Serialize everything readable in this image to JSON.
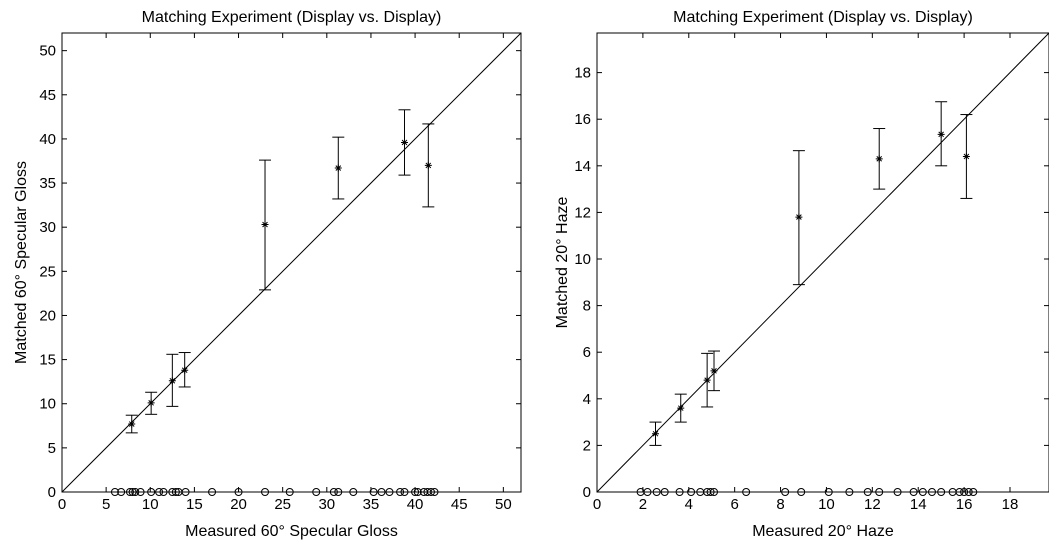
{
  "chart_data": [
    {
      "type": "scatter",
      "title": "Matching Experiment (Display vs. Display)",
      "xlabel": "Measured 60° Specular Gloss",
      "ylabel": "Matched 60° Specular Gloss",
      "xlim": [
        0,
        52
      ],
      "ylim": [
        0,
        52
      ],
      "xticks": [
        0,
        5,
        10,
        15,
        20,
        25,
        30,
        35,
        40,
        45,
        50
      ],
      "yticks": [
        0,
        5,
        10,
        15,
        20,
        25,
        30,
        35,
        40,
        45,
        50
      ],
      "identity_line": true,
      "series": [
        {
          "marker": "asterisk",
          "points": [
            {
              "x": 7.9,
              "y": 7.7,
              "ylow": 6.7,
              "yhigh": 8.7
            },
            {
              "x": 10.1,
              "y": 10.1,
              "ylow": 8.8,
              "yhigh": 11.3
            },
            {
              "x": 12.5,
              "y": 12.6,
              "ylow": 9.7,
              "yhigh": 15.6
            },
            {
              "x": 13.9,
              "y": 13.8,
              "ylow": 11.9,
              "yhigh": 15.8
            },
            {
              "x": 23.0,
              "y": 30.3,
              "ylow": 22.9,
              "yhigh": 37.6
            },
            {
              "x": 31.3,
              "y": 36.7,
              "ylow": 33.2,
              "yhigh": 40.2
            },
            {
              "x": 38.8,
              "y": 39.6,
              "ylow": 35.9,
              "yhigh": 43.3
            },
            {
              "x": 41.5,
              "y": 37.0,
              "ylow": 32.3,
              "yhigh": 41.7
            }
          ]
        },
        {
          "marker": "circle",
          "x": [
            6.0,
            6.7,
            7.7,
            8.0,
            8.3,
            8.9,
            10.1,
            11.0,
            11.5,
            12.5,
            12.9,
            13.2,
            14.0,
            17.0,
            20.0,
            23.0,
            25.8,
            28.8,
            30.8,
            31.3,
            33.0,
            35.3,
            36.2,
            37.1,
            38.3,
            38.8,
            40.0,
            40.3,
            41.0,
            41.4,
            41.8,
            42.2
          ],
          "y": 0
        }
      ]
    },
    {
      "type": "scatter",
      "title": "Matching Experiment (Display vs. Display)",
      "xlabel": "Measured 20° Haze",
      "ylabel": "Matched 20° Haze",
      "xlim": [
        0,
        19.7
      ],
      "ylim": [
        0,
        19.7
      ],
      "xticks": [
        0,
        2,
        4,
        6,
        8,
        10,
        12,
        14,
        16,
        18
      ],
      "yticks": [
        0,
        2,
        4,
        6,
        8,
        10,
        12,
        14,
        16,
        18
      ],
      "identity_line": true,
      "series": [
        {
          "marker": "asterisk",
          "points": [
            {
              "x": 2.55,
              "y": 2.5,
              "ylow": 2.0,
              "yhigh": 3.0
            },
            {
              "x": 3.65,
              "y": 3.6,
              "ylow": 3.0,
              "yhigh": 4.2
            },
            {
              "x": 4.8,
              "y": 4.8,
              "ylow": 3.65,
              "yhigh": 5.95
            },
            {
              "x": 5.1,
              "y": 5.2,
              "ylow": 4.35,
              "yhigh": 6.05
            },
            {
              "x": 8.8,
              "y": 11.8,
              "ylow": 8.9,
              "yhigh": 14.65
            },
            {
              "x": 12.3,
              "y": 14.3,
              "ylow": 13.0,
              "yhigh": 15.6
            },
            {
              "x": 15.0,
              "y": 15.35,
              "ylow": 14.0,
              "yhigh": 16.75
            },
            {
              "x": 16.1,
              "y": 14.4,
              "ylow": 12.6,
              "yhigh": 16.2
            }
          ]
        },
        {
          "marker": "circle",
          "x": [
            1.9,
            2.2,
            2.6,
            2.95,
            3.6,
            4.1,
            4.5,
            4.8,
            4.95,
            5.1,
            6.5,
            8.2,
            8.9,
            10.1,
            11.0,
            11.8,
            12.3,
            13.1,
            13.8,
            14.2,
            14.6,
            15.0,
            15.5,
            15.8,
            16.0,
            16.2,
            16.4
          ],
          "y": 0
        }
      ]
    }
  ]
}
